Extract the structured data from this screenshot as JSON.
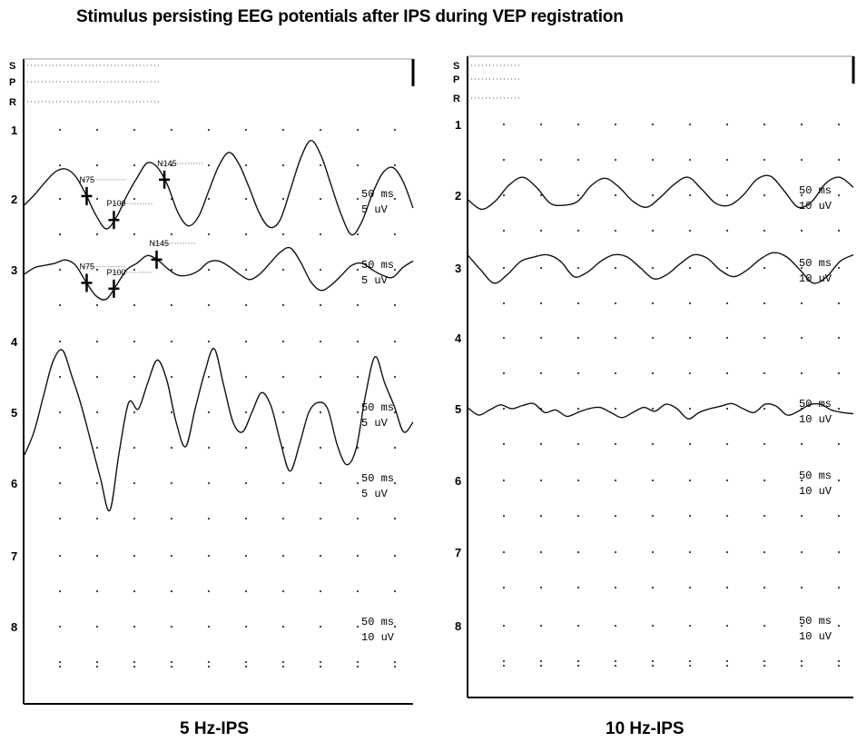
{
  "page": {
    "title": "Stimulus persisting EEG potentials after IPS during VEP registration"
  },
  "chart_data": [
    {
      "type": "line",
      "caption": "5 Hz-IPS",
      "row_labels": [
        "S",
        "P",
        "R",
        "1",
        "2",
        "3",
        "4",
        "5",
        "6",
        "7",
        "8"
      ],
      "scale_labels": [
        {
          "row": "2",
          "time": "50 ms",
          "amplitude": "5 uV"
        },
        {
          "row": "3",
          "time": "50 ms",
          "amplitude": "5 uV"
        },
        {
          "row": "5",
          "time": "50 ms",
          "amplitude": "5 uV"
        },
        {
          "row": "6",
          "time": "50 ms",
          "amplitude": "5 uV"
        },
        {
          "row": "8",
          "time": "50 ms",
          "amplitude": "10 uV"
        }
      ],
      "markers": [
        {
          "trace": 1,
          "label": "N75",
          "x": 0.16
        },
        {
          "trace": 1,
          "label": "P100",
          "x": 0.23
        },
        {
          "trace": 1,
          "label": "N145",
          "x": 0.36
        },
        {
          "trace": 2,
          "label": "N75",
          "x": 0.16
        },
        {
          "trace": 2,
          "label": "P100",
          "x": 0.23
        },
        {
          "trace": 2,
          "label": "N145",
          "x": 0.34
        }
      ],
      "series": [
        {
          "row": 2,
          "values": [
            -0.2,
            0.15,
            0.55,
            0.9,
            1.0,
            0.75,
            0.15,
            -0.55,
            -1.0,
            -0.6,
            0.1,
            0.7,
            1.2,
            1.05,
            0.45,
            -0.45,
            -0.9,
            -0.6,
            0.25,
            1.1,
            1.55,
            1.15,
            0.35,
            -0.5,
            -0.95,
            -0.7,
            0.3,
            1.35,
            1.95,
            1.45,
            0.45,
            -0.55,
            -1.2,
            -0.75,
            0.15,
            0.85,
            1.05,
            0.6,
            -0.3
          ]
        },
        {
          "row": 3,
          "values": [
            -0.2,
            0.1,
            0.2,
            0.3,
            0.45,
            0.2,
            -0.55,
            -1.2,
            -1.35,
            -0.7,
            0.0,
            0.3,
            0.65,
            0.45,
            0.05,
            -0.25,
            -0.25,
            -0.05,
            0.35,
            0.4,
            0.15,
            -0.2,
            -0.45,
            -0.2,
            0.3,
            0.8,
            1.0,
            0.35,
            -0.55,
            -0.95,
            -0.7,
            -0.25,
            0.2,
            0.3,
            0.0,
            -0.25,
            -0.35,
            0.1,
            0.4
          ]
        },
        {
          "row": 5,
          "values": [
            -1.3,
            -0.6,
            0.5,
            1.55,
            1.9,
            1.1,
            0.2,
            -0.9,
            -2.0,
            -3.0,
            -1.2,
            0.3,
            0.1,
            0.9,
            1.6,
            1.0,
            -0.3,
            -1.05,
            0.1,
            1.2,
            1.95,
            0.85,
            -0.3,
            -0.6,
            0.0,
            0.6,
            0.2,
            -0.9,
            -1.8,
            -1.0,
            0.0,
            0.3,
            0.1,
            -1.0,
            -1.6,
            -1.1,
            0.55,
            1.7,
            0.9,
            0.2,
            -0.6,
            -0.3
          ]
        }
      ]
    },
    {
      "type": "line",
      "caption": "10 Hz-IPS",
      "row_labels": [
        "S",
        "P",
        "R",
        "1",
        "2",
        "3",
        "4",
        "5",
        "6",
        "7",
        "8"
      ],
      "scale_labels": [
        {
          "row": "2",
          "time": "50 ms",
          "amplitude": "10 uV"
        },
        {
          "row": "3",
          "time": "50 ms",
          "amplitude": "10 uV"
        },
        {
          "row": "5",
          "time": "50 ms",
          "amplitude": "10 uV"
        },
        {
          "row": "6",
          "time": "50 ms",
          "amplitude": "10 uV"
        },
        {
          "row": "8",
          "time": "50 ms",
          "amplitude": "10 uV"
        }
      ],
      "series": [
        {
          "row": 2,
          "values": [
            -0.2,
            -0.7,
            -0.3,
            0.5,
            0.9,
            0.4,
            -0.4,
            -0.5,
            -0.3,
            0.5,
            0.85,
            0.4,
            -0.3,
            -0.6,
            -0.1,
            0.55,
            0.9,
            0.3,
            -0.4,
            -0.5,
            0.0,
            0.8,
            0.95,
            0.2,
            -0.6,
            -0.3,
            0.6,
            0.9,
            0.4
          ]
        },
        {
          "row": 3,
          "values": [
            0.6,
            -0.1,
            -0.7,
            -0.3,
            0.3,
            0.5,
            0.6,
            0.3,
            -0.4,
            -0.2,
            0.3,
            0.6,
            0.5,
            0.0,
            -0.5,
            -0.3,
            0.2,
            0.6,
            0.45,
            -0.1,
            -0.4,
            -0.1,
            0.4,
            0.7,
            0.5,
            -0.1,
            -0.7,
            -0.4,
            0.3,
            0.6
          ]
        },
        {
          "row": 5,
          "values": [
            0.1,
            -0.5,
            -0.1,
            0.3,
            0.0,
            0.25,
            0.4,
            -0.3,
            -0.1,
            -0.6,
            -0.3,
            0.0,
            0.1,
            -0.3,
            -0.7,
            -0.3,
            0.1,
            -0.2,
            0.35,
            0.0,
            -0.8,
            -0.3,
            0.0,
            0.2,
            0.4,
            0.0,
            -0.3,
            0.35,
            0.2,
            -0.5,
            -0.2,
            0.3,
            0.35,
            -0.1,
            -0.3,
            -0.4
          ]
        }
      ]
    }
  ]
}
